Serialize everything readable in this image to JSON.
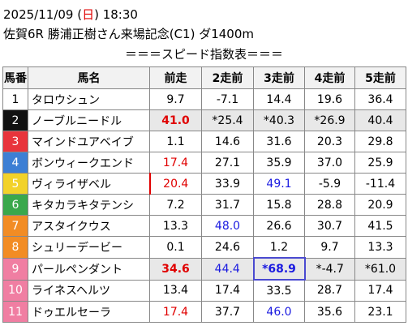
{
  "header": {
    "date_parts": [
      "2025/11/09 (",
      "日",
      ") 18:30"
    ],
    "date_colors": [
      "#000000",
      "#e00000",
      "#000000"
    ],
    "race": "佐賀6R 勝浦正樹さん来場記念(C1) ダ1400m",
    "subtitle": "＝＝＝スピード指数表＝＝＝"
  },
  "table": {
    "columns": [
      "馬番",
      "馬名",
      "前走",
      "2走前",
      "3走前",
      "4走前",
      "5走前"
    ],
    "rows": [
      {
        "number": "1",
        "name": "タロウシュン",
        "frame": "#ffffff",
        "frame_text": "#000000",
        "cells": [
          "9.7",
          "-7.1",
          "14.4",
          "19.6",
          "36.4"
        ],
        "colors": [
          "#000",
          "#000",
          "#000",
          "#000",
          "#000"
        ],
        "shade": false
      },
      {
        "number": "2",
        "name": "ノーブルニードル",
        "frame": "#111111",
        "frame_text": "#ffffff",
        "cells": [
          "41.0",
          "*25.4",
          "*40.3",
          "*26.9",
          "40.4"
        ],
        "colors": [
          "#e00000",
          "#000",
          "#000",
          "#000",
          "#000"
        ],
        "shade": true
      },
      {
        "number": "3",
        "name": "マインドユアベイブ",
        "frame": "#e8343c",
        "frame_text": "#ffffff",
        "cells": [
          "1.1",
          "14.6",
          "31.6",
          "20.3",
          "29.8"
        ],
        "colors": [
          "#000",
          "#000",
          "#000",
          "#000",
          "#000"
        ],
        "shade": false
      },
      {
        "number": "4",
        "name": "ボンウィークエンド",
        "frame": "#3d7fd4",
        "frame_text": "#ffffff",
        "cells": [
          "17.4",
          "27.1",
          "35.9",
          "37.0",
          "25.9"
        ],
        "colors": [
          "#e00000",
          "#000",
          "#000",
          "#000",
          "#000"
        ],
        "shade": false
      },
      {
        "number": "5",
        "name": "ヴィライザベル",
        "frame": "#f2d22a",
        "frame_text": "#ffffff",
        "cells": [
          "20.4",
          "33.9",
          "49.1",
          "-5.9",
          "-11.4"
        ],
        "colors": [
          "#e00000",
          "#000",
          "#1a1ae0",
          "#000",
          "#000"
        ],
        "shade": false
      },
      {
        "number": "6",
        "name": "キタカラキタテンシ",
        "frame": "#3aa84c",
        "frame_text": "#ffffff",
        "cells": [
          "7.2",
          "31.7",
          "15.8",
          "28.8",
          "20.9"
        ],
        "colors": [
          "#000",
          "#000",
          "#000",
          "#000",
          "#000"
        ],
        "shade": false
      },
      {
        "number": "7",
        "name": "アスタイクウス",
        "frame": "#f28c24",
        "frame_text": "#ffffff",
        "cells": [
          "13.3",
          "48.0",
          "26.6",
          "30.7",
          "41.5"
        ],
        "colors": [
          "#000",
          "#1a1ae0",
          "#000",
          "#000",
          "#000"
        ],
        "shade": false
      },
      {
        "number": "8",
        "name": "シュリーデービー",
        "frame": "#f28c24",
        "frame_text": "#ffffff",
        "cells": [
          "0.1",
          "24.6",
          "1.2",
          "9.7",
          "13.3"
        ],
        "colors": [
          "#000",
          "#000",
          "#000",
          "#000",
          "#000"
        ],
        "shade": false
      },
      {
        "number": "9",
        "name": "パールペンダント",
        "frame": "#f07ea2",
        "frame_text": "#ffffff",
        "cells": [
          "34.6",
          "44.4",
          "*68.9",
          "*-4.7",
          "*61.0"
        ],
        "colors": [
          "#e00000",
          "#1a1ae0",
          "#1a1ae0",
          "#000",
          "#000"
        ],
        "shade": true
      },
      {
        "number": "10",
        "name": "ライネスヘルツ",
        "frame": "#f07ea2",
        "frame_text": "#ffffff",
        "cells": [
          "13.4",
          "17.4",
          "33.5",
          "28.7",
          "17.4"
        ],
        "colors": [
          "#000",
          "#000",
          "#000",
          "#000",
          "#000"
        ],
        "shade": false
      },
      {
        "number": "11",
        "name": "ドゥエルセーラ",
        "frame": "#f07ea2",
        "frame_text": "#ffffff",
        "cells": [
          "17.4",
          "37.7",
          "46.0",
          "35.6",
          "23.1"
        ],
        "colors": [
          "#e00000",
          "#000",
          "#1a1ae0",
          "#000",
          "#000"
        ],
        "shade": false
      }
    ]
  }
}
